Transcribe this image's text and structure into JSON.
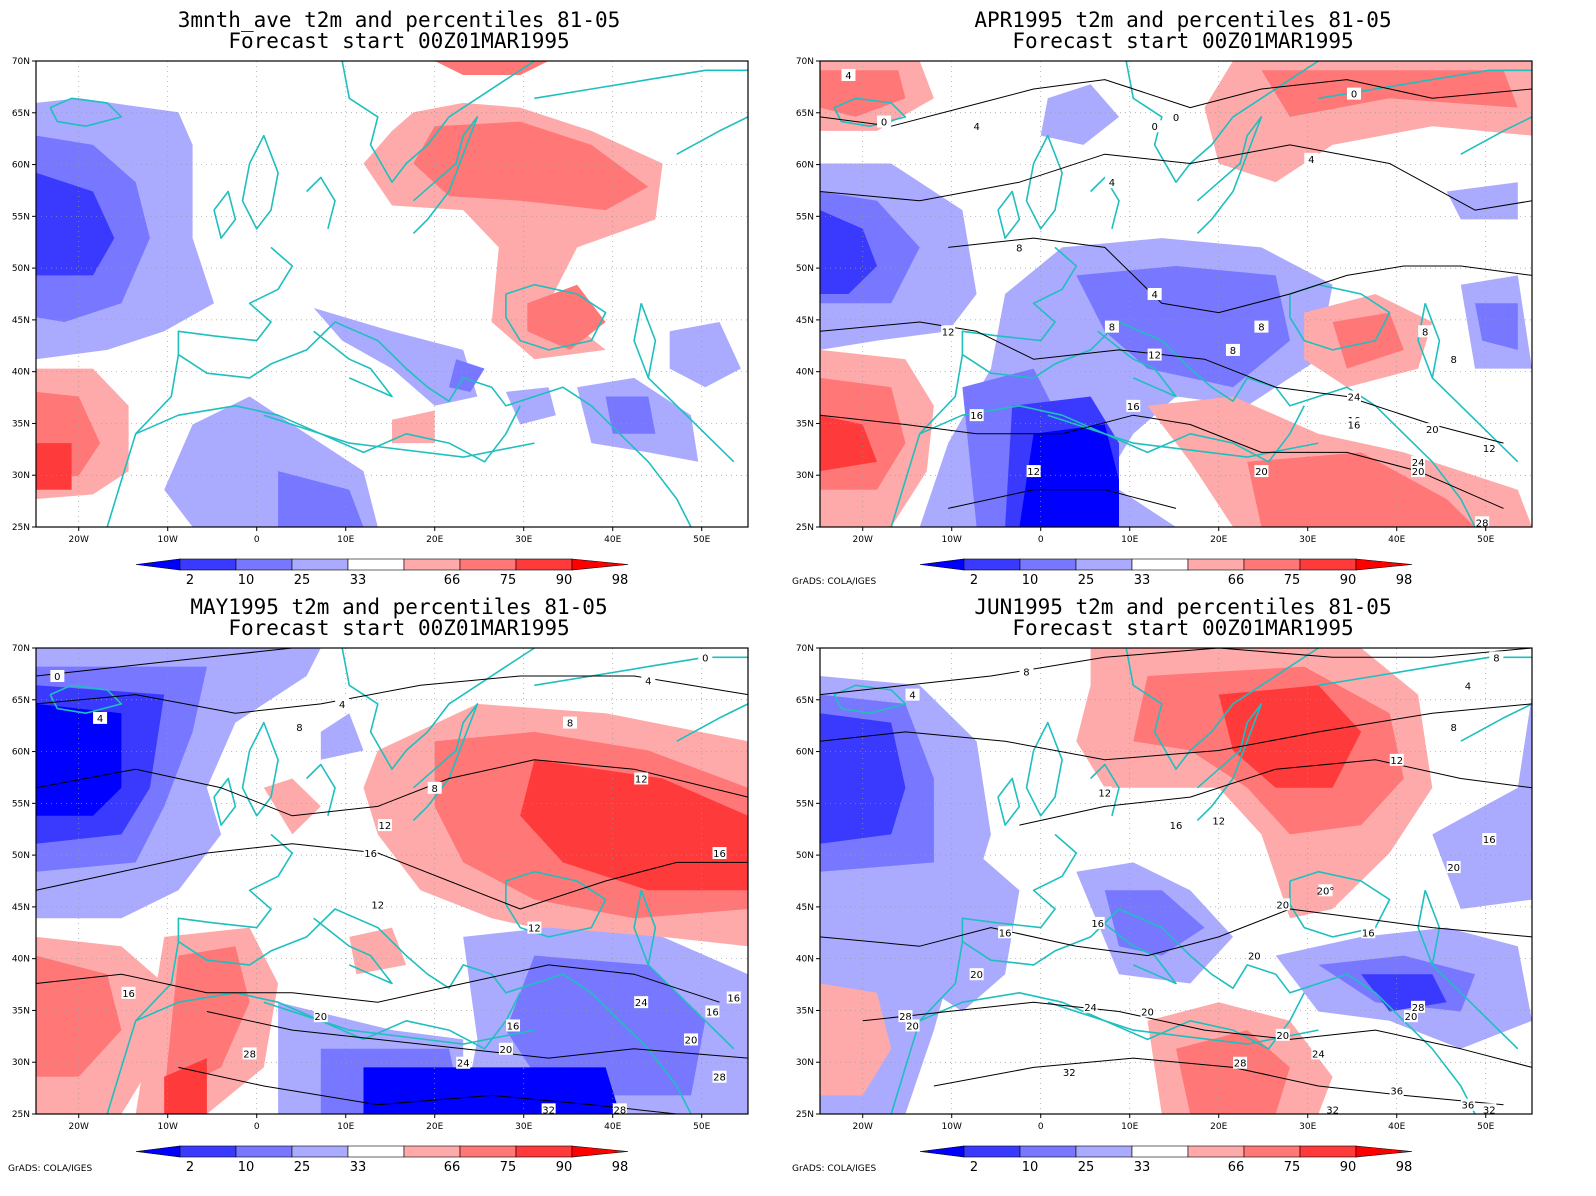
{
  "colors": {
    "coast": "#1fbfbf",
    "contour": "#000000",
    "scale": [
      "#0000ff",
      "#3a3aff",
      "#7777ff",
      "#aaaaff",
      "#ffffff",
      "#ffaaaa",
      "#ff7777",
      "#ff3a3a",
      "#ff0000"
    ]
  },
  "colorbar": {
    "labels": [
      "2",
      "10",
      "25",
      "33",
      "66",
      "75",
      "90",
      "98"
    ]
  },
  "axes": {
    "y_labels": [
      "70N",
      "65N",
      "60N",
      "55N",
      "50N",
      "45N",
      "40N",
      "35N",
      "30N",
      "25N"
    ],
    "x_labels": [
      "20W",
      "10W",
      "0",
      "10E",
      "20E",
      "30E",
      "40E",
      "50E"
    ]
  },
  "credit": "GrADS: COLA/IGES",
  "panels": [
    {
      "title1": "3mnth_ave t2m and percentiles 81-05",
      "title2": "Forecast start 00Z01MAR1995",
      "credit": "",
      "contour_labels": []
    },
    {
      "title1": "APR1995 t2m and percentiles 81-05",
      "title2": "Forecast start 00Z01MAR1995",
      "credit": "GrADS: COLA/IGES",
      "contour_labels": [
        "4",
        "0",
        "0",
        "4",
        "0",
        "0",
        "4",
        "4",
        "8",
        "4",
        "8",
        "8",
        "8",
        "12",
        "8",
        "8",
        "12",
        "12",
        "16",
        "16",
        "16",
        "12",
        "20",
        "20",
        "20",
        "24",
        "16",
        "24",
        "28"
      ]
    },
    {
      "title1": "MAY1995 t2m and percentiles 81-05",
      "title2": "Forecast start 00Z01MAR1995",
      "credit": "GrADS: COLA/IGES",
      "contour_labels": [
        "0",
        "0",
        "4",
        "4",
        "4",
        "8",
        "8",
        "8",
        "12",
        "12",
        "12",
        "16",
        "16",
        "16",
        "12",
        "16",
        "20",
        "16",
        "20",
        "24",
        "24",
        "16",
        "20",
        "28",
        "28",
        "28",
        "32"
      ]
    },
    {
      "title1": "JUN1995 t2m and percentiles 81-05",
      "title2": "Forecast start 00Z01MAR1995",
      "credit": "GrADS: COLA/IGES",
      "contour_labels": [
        "4",
        "8",
        "4",
        "8",
        "8",
        "12",
        "12",
        "12",
        "16",
        "16",
        "20",
        "20°",
        "20",
        "16",
        "16",
        "16",
        "20",
        "20",
        "20",
        "28",
        "20",
        "24",
        "20",
        "24",
        "28",
        "32",
        "36",
        "32",
        "32",
        "36",
        "28",
        "20"
      ]
    }
  ]
}
